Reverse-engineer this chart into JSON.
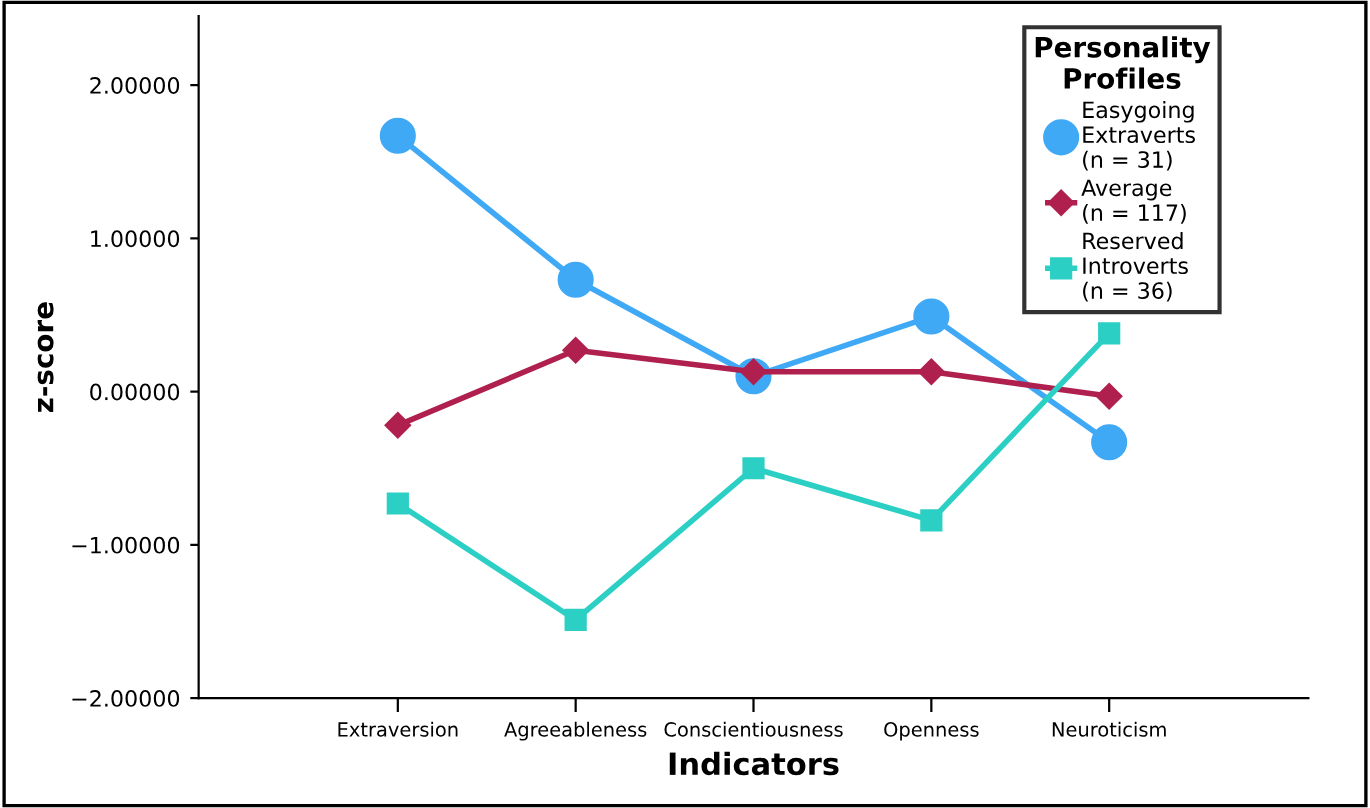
{
  "chart_data": {
    "type": "line",
    "xlabel": "Indicators",
    "ylabel": "z-score",
    "legend_title": "Personality\nProfiles",
    "legend": "top right",
    "grid": false,
    "categories": [
      "Extraversion",
      "Agreeableness",
      "Conscientiousness",
      "Openness",
      "Neuroticism"
    ],
    "ylim": [
      -2.0,
      2.45
    ],
    "yticks": [
      {
        "value": -2,
        "label": "−2.00000"
      },
      {
        "value": -1,
        "label": "−1.00000"
      },
      {
        "value": 0,
        "label": "0.00000"
      },
      {
        "value": 1,
        "label": "1.00000"
      },
      {
        "value": 2,
        "label": "2.00000"
      }
    ],
    "series": [
      {
        "name": "Easygoing\nExtraverts\n(n = 31)",
        "color": "#3fa9f5",
        "marker": "circle",
        "values": [
          1.67,
          0.73,
          0.1,
          0.49,
          -0.33
        ]
      },
      {
        "name": "Average\n(n = 117)",
        "color": "#b0204e",
        "marker": "diamond",
        "values": [
          -0.22,
          0.27,
          0.13,
          0.13,
          -0.03
        ]
      },
      {
        "name": "Reserved\nIntroverts\n(n = 36)",
        "color": "#2ccfc4",
        "marker": "square",
        "values": [
          -0.73,
          -1.49,
          -0.5,
          -0.84,
          0.38
        ]
      }
    ]
  }
}
